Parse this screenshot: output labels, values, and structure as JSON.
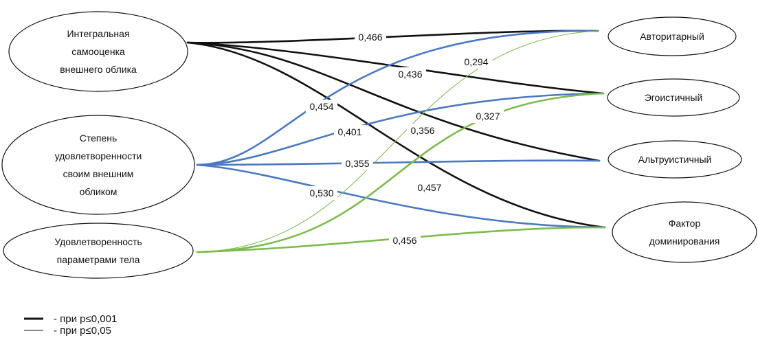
{
  "colors": {
    "black": "#111111",
    "blue": "#4a78c2",
    "green": "#7dbb4e"
  },
  "left_nodes": [
    {
      "id": "integral",
      "lines": [
        "Интегральная",
        "самооценка",
        "внешнего облика"
      ]
    },
    {
      "id": "satisfaction",
      "lines": [
        "Степень",
        "удовлетворенности",
        "своим внешним",
        "обликом"
      ]
    },
    {
      "id": "body",
      "lines": [
        "Удовлетворенность",
        "параметрами тела"
      ]
    }
  ],
  "right_nodes": [
    {
      "id": "authoritarian",
      "lines": [
        "Авторитарный"
      ]
    },
    {
      "id": "egoistic",
      "lines": [
        "Эгоистичный"
      ]
    },
    {
      "id": "altruistic",
      "lines": [
        "Альтруистичный"
      ]
    },
    {
      "id": "dominance",
      "lines": [
        "Фактор",
        "доминирования"
      ]
    }
  ],
  "edges": [
    {
      "from": "integral",
      "to": "authoritarian",
      "coef": "0,466",
      "color": "black",
      "significance": "p001"
    },
    {
      "from": "integral",
      "to": "egoistic",
      "coef": "0,436",
      "color": "black",
      "significance": "p001"
    },
    {
      "from": "integral",
      "to": "altruistic",
      "coef": "0,356",
      "color": "black",
      "significance": "p001"
    },
    {
      "from": "integral",
      "to": "dominance",
      "coef": "0,457",
      "color": "black",
      "significance": "p001"
    },
    {
      "from": "satisfaction",
      "to": "authoritarian",
      "coef": "0,454",
      "color": "blue",
      "significance": "p001"
    },
    {
      "from": "satisfaction",
      "to": "egoistic",
      "coef": "0,401",
      "color": "blue",
      "significance": "p001"
    },
    {
      "from": "satisfaction",
      "to": "altruistic",
      "coef": "0,355",
      "color": "blue",
      "significance": "p001"
    },
    {
      "from": "satisfaction",
      "to": "dominance",
      "coef": "0,530",
      "color": "blue",
      "significance": "p001"
    },
    {
      "from": "body",
      "to": "authoritarian",
      "coef": "0,294",
      "color": "green",
      "significance": "p05"
    },
    {
      "from": "body",
      "to": "egoistic",
      "coef": "0,327",
      "color": "green",
      "significance": "p001"
    },
    {
      "from": "body",
      "to": "dominance",
      "coef": "0,456",
      "color": "green",
      "significance": "p001"
    }
  ],
  "legend": [
    {
      "label": "- при p≤0,001",
      "significance": "p001"
    },
    {
      "label": "- при p≤0,05",
      "significance": "p05"
    }
  ]
}
